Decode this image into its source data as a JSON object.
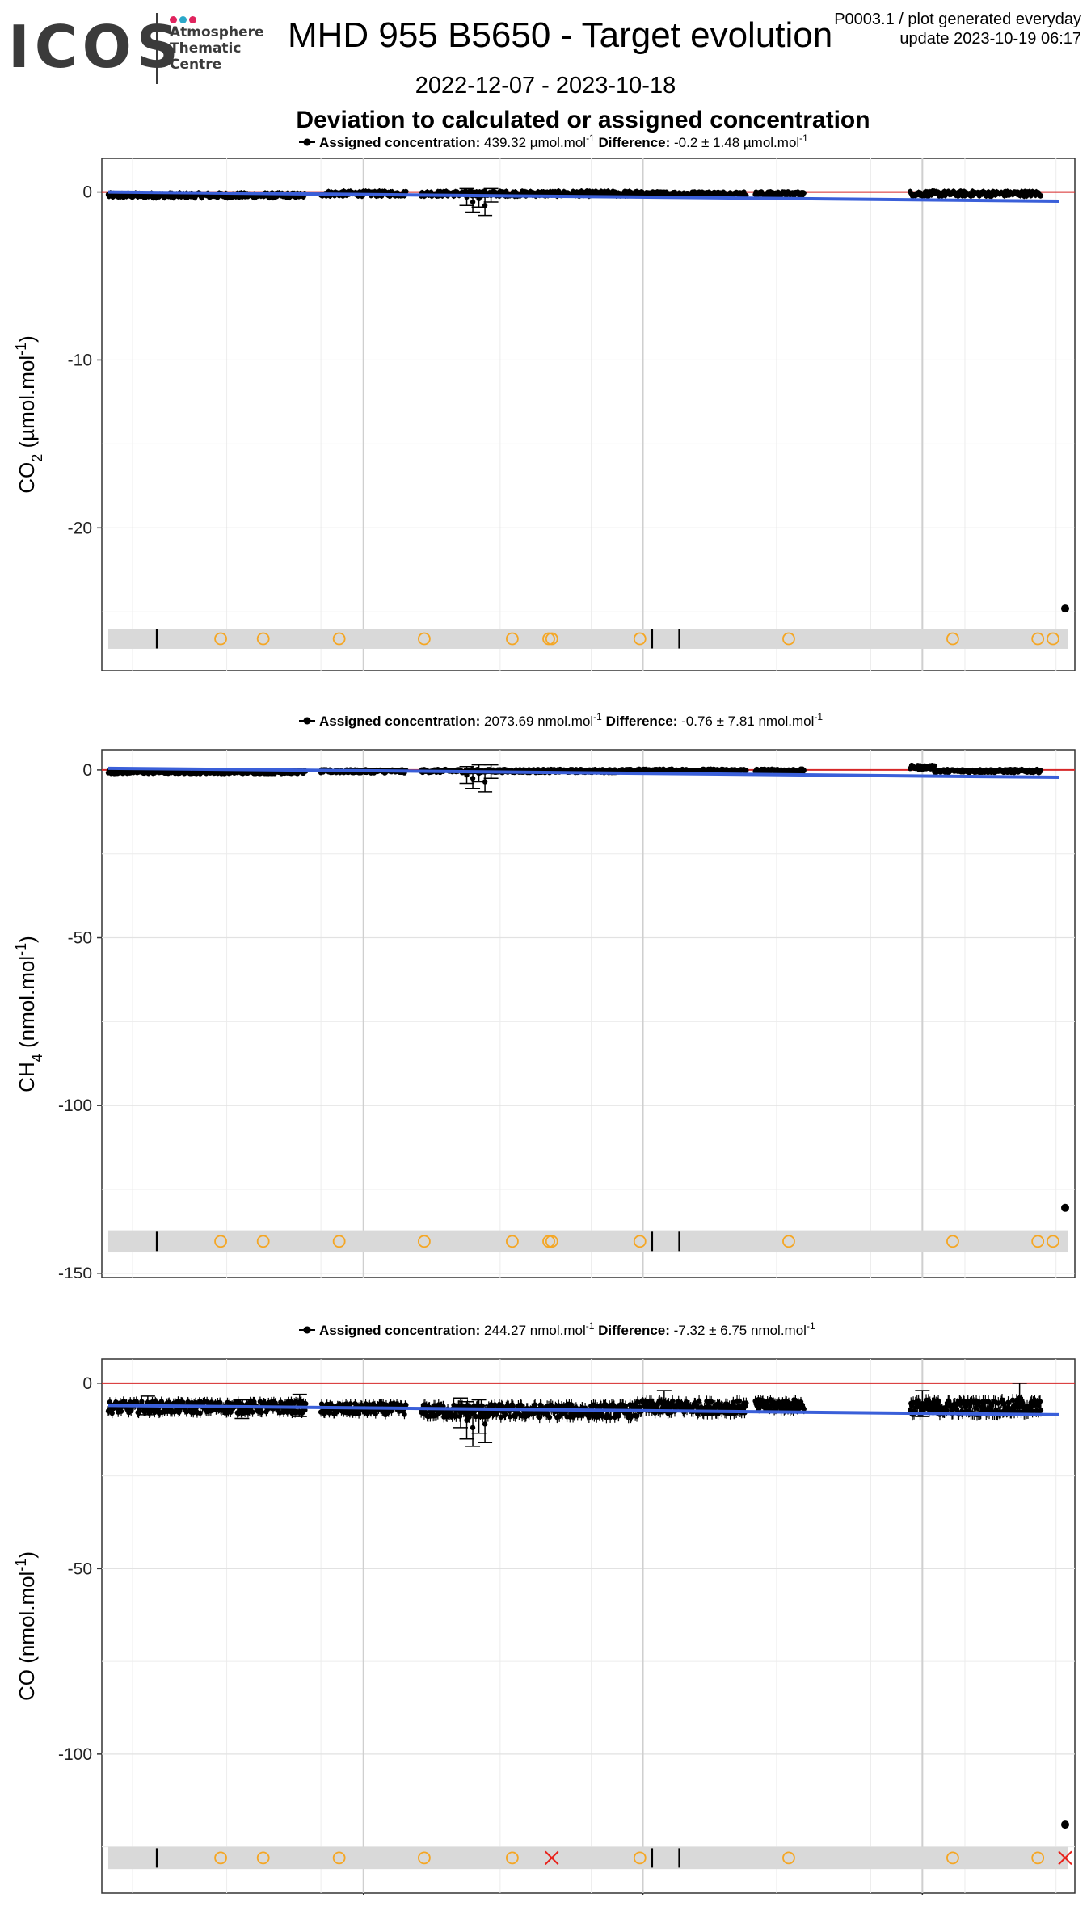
{
  "header": {
    "logo": {
      "word": "ICOS",
      "lines": [
        "Atmosphere",
        "Thematic",
        "Centre"
      ],
      "dot_colors": [
        "#e0245e",
        "#2aa8c9",
        "#e0245e"
      ]
    },
    "title": "MHD 955 B5650 - Target evolution",
    "date_range": "2022-12-07 - 2023-10-18",
    "subtitle": "Deviation to calculated or assigned concentration",
    "info_line1": "P0003.1 / plot generated everyday",
    "info_line2": "update  2023-10-19 06:17"
  },
  "colors": {
    "data": "#000000",
    "trend": "#3a5fd9",
    "zero_line": "#d62728",
    "flag_circle": "#f5a623",
    "flag_cross": "#e8221c",
    "flag_band": "#d9d9d9"
  },
  "chart_data": [
    {
      "type": "scatter",
      "legend": {
        "label_bold": "Assigned concentration:",
        "assigned": "439.32 µmol.mol",
        "sup1": "-1",
        "diff_bold": "Difference:",
        "difference": "-0.2 ± 1.48 µmol.mol",
        "sup2": "-1"
      },
      "ylabel_main": "CO",
      "ylabel_sub": "2",
      "ylabel_unit": " (µmol.mol",
      "ylabel_sup": "-1",
      "ylabel_end": ")",
      "xlim": [
        "2022-12-07",
        "2023-10-18"
      ],
      "ylim": [
        -28.5,
        2.0
      ],
      "yticks": [
        0,
        -10,
        -20
      ],
      "xticks": [
        "2023-03",
        "2023-06",
        "2023-09"
      ],
      "xminor": [
        "2022-12-15",
        "2023-01-15",
        "2023-02-15",
        "2023-04-15",
        "2023-05-15",
        "2023-07-15",
        "2023-08-15",
        "2023-09-15",
        "2023-10-15"
      ],
      "band": {
        "y": -26.6,
        "half_height": 0.6
      },
      "segments": [
        {
          "x1": "2022-12-07",
          "x2": "2023-02-10",
          "y": -0.2,
          "spread": 0.15
        },
        {
          "x1": "2023-02-15",
          "x2": "2023-03-15",
          "y": -0.1,
          "spread": 0.15
        },
        {
          "x1": "2023-03-20",
          "x2": "2023-05-30",
          "y": -0.1,
          "spread": 0.15
        },
        {
          "x1": "2023-05-30",
          "x2": "2023-07-05",
          "y": -0.1,
          "spread": 0.12
        },
        {
          "x1": "2023-07-08",
          "x2": "2023-07-24",
          "y": -0.1,
          "spread": 0.12
        },
        {
          "x1": "2023-08-28",
          "x2": "2023-10-10",
          "y": -0.1,
          "spread": 0.15
        }
      ],
      "errorbars": [
        {
          "x": "2023-04-04",
          "y": -0.3,
          "err": 0.5
        },
        {
          "x": "2023-04-06",
          "y": -0.6,
          "err": 0.6
        },
        {
          "x": "2023-04-08",
          "y": -0.4,
          "err": 0.5
        },
        {
          "x": "2023-04-10",
          "y": -0.8,
          "err": 0.6
        },
        {
          "x": "2023-04-12",
          "y": -0.2,
          "err": 0.4
        }
      ],
      "outliers": [
        {
          "x": "2023-10-18",
          "y": -24.8
        }
      ],
      "trend": {
        "x": [
          "2022-12-07",
          "2023-10-16"
        ],
        "y": [
          0.0,
          -0.55
        ]
      },
      "flags": [
        {
          "x": "2022-12-23",
          "kind": "tick"
        },
        {
          "x": "2023-01-13",
          "kind": "circle"
        },
        {
          "x": "2023-01-27",
          "kind": "circle"
        },
        {
          "x": "2023-02-21",
          "kind": "circle"
        },
        {
          "x": "2023-03-21",
          "kind": "circle"
        },
        {
          "x": "2023-04-19",
          "kind": "circle"
        },
        {
          "x": "2023-05-01",
          "kind": "circle"
        },
        {
          "x": "2023-05-02",
          "kind": "circle"
        },
        {
          "x": "2023-05-31",
          "kind": "circle"
        },
        {
          "x": "2023-06-04",
          "kind": "tick"
        },
        {
          "x": "2023-06-13",
          "kind": "tick"
        },
        {
          "x": "2023-07-19",
          "kind": "circle"
        },
        {
          "x": "2023-09-11",
          "kind": "circle"
        },
        {
          "x": "2023-10-09",
          "kind": "circle"
        },
        {
          "x": "2023-10-14",
          "kind": "circle"
        }
      ]
    },
    {
      "type": "scatter",
      "legend": {
        "label_bold": "Assigned concentration:",
        "assigned": "2073.69 nmol.mol",
        "sup1": "-1",
        "diff_bold": "Difference:",
        "difference": "-0.76 ± 7.81 nmol.mol",
        "sup2": "-1"
      },
      "ylabel_main": "CH",
      "ylabel_sub": "4",
      "ylabel_unit": " (nmol.mol",
      "ylabel_sup": "-1",
      "ylabel_end": ")",
      "xlim": [
        "2022-12-07",
        "2023-10-18"
      ],
      "ylim": [
        -151.5,
        6.0
      ],
      "yticks": [
        0,
        -50,
        -100,
        -150
      ],
      "xticks": [
        "2023-03",
        "2023-06",
        "2023-09"
      ],
      "xminor": [
        "2022-12-15",
        "2023-01-15",
        "2023-02-15",
        "2023-04-15",
        "2023-05-15",
        "2023-07-15",
        "2023-08-15",
        "2023-09-15",
        "2023-10-15"
      ],
      "band": {
        "y": -140.5,
        "half_height": 3.3
      },
      "segments": [
        {
          "x1": "2022-12-07",
          "x2": "2023-02-10",
          "y": -0.6,
          "spread": 0.5
        },
        {
          "x1": "2023-02-15",
          "x2": "2023-03-15",
          "y": -0.4,
          "spread": 0.5
        },
        {
          "x1": "2023-03-20",
          "x2": "2023-05-30",
          "y": -0.3,
          "spread": 0.5
        },
        {
          "x1": "2023-05-30",
          "x2": "2023-07-05",
          "y": -0.2,
          "spread": 0.5
        },
        {
          "x1": "2023-07-08",
          "x2": "2023-07-24",
          "y": -0.2,
          "spread": 0.5
        },
        {
          "x1": "2023-08-28",
          "x2": "2023-09-05",
          "y": 0.8,
          "spread": 0.6
        },
        {
          "x1": "2023-09-05",
          "x2": "2023-10-10",
          "y": -0.3,
          "spread": 0.5
        }
      ],
      "errorbars": [
        {
          "x": "2023-04-04",
          "y": -1.5,
          "err": 2.5
        },
        {
          "x": "2023-04-06",
          "y": -2.5,
          "err": 3.0
        },
        {
          "x": "2023-04-08",
          "y": -1.0,
          "err": 2.5
        },
        {
          "x": "2023-04-10",
          "y": -3.5,
          "err": 3.0
        },
        {
          "x": "2023-04-12",
          "y": -0.5,
          "err": 2.0
        }
      ],
      "outliers": [
        {
          "x": "2023-10-18",
          "y": -130.5
        }
      ],
      "trend": {
        "x": [
          "2022-12-07",
          "2023-10-16"
        ],
        "y": [
          0.5,
          -2.2
        ]
      },
      "flags": [
        {
          "x": "2022-12-23",
          "kind": "tick"
        },
        {
          "x": "2023-01-13",
          "kind": "circle"
        },
        {
          "x": "2023-01-27",
          "kind": "circle"
        },
        {
          "x": "2023-02-21",
          "kind": "circle"
        },
        {
          "x": "2023-03-21",
          "kind": "circle"
        },
        {
          "x": "2023-04-19",
          "kind": "circle"
        },
        {
          "x": "2023-05-01",
          "kind": "circle"
        },
        {
          "x": "2023-05-02",
          "kind": "circle"
        },
        {
          "x": "2023-05-31",
          "kind": "circle"
        },
        {
          "x": "2023-06-04",
          "kind": "tick"
        },
        {
          "x": "2023-06-13",
          "kind": "tick"
        },
        {
          "x": "2023-07-19",
          "kind": "circle"
        },
        {
          "x": "2023-09-11",
          "kind": "circle"
        },
        {
          "x": "2023-10-09",
          "kind": "circle"
        },
        {
          "x": "2023-10-14",
          "kind": "circle"
        }
      ]
    },
    {
      "type": "scatter",
      "legend": {
        "label_bold": "Assigned concentration:",
        "assigned": "244.27 nmol.mol",
        "sup1": "-1",
        "diff_bold": "Difference:",
        "difference": "-7.32 ± 6.75 nmol.mol",
        "sup2": "-1"
      },
      "ylabel_main": "CO",
      "ylabel_sub": "",
      "ylabel_unit": " (nmol.mol",
      "ylabel_sup": "-1",
      "ylabel_end": ")",
      "xlim": [
        "2022-12-07",
        "2023-10-18"
      ],
      "ylim": [
        -137.5,
        6.5
      ],
      "yticks": [
        0,
        -50,
        -100
      ],
      "xticks": [
        "2023-03",
        "2023-06",
        "2023-09"
      ],
      "xminor": [
        "2022-12-15",
        "2023-01-15",
        "2023-02-15",
        "2023-04-15",
        "2023-05-15",
        "2023-07-15",
        "2023-08-15",
        "2023-09-15",
        "2023-10-15"
      ],
      "band": {
        "y": -128.0,
        "half_height": 3.0
      },
      "segments": [
        {
          "x1": "2022-12-07",
          "x2": "2023-02-10",
          "y": -6.5,
          "spread": 1.6
        },
        {
          "x1": "2023-02-15",
          "x2": "2023-03-15",
          "y": -7.0,
          "spread": 1.5
        },
        {
          "x1": "2023-03-20",
          "x2": "2023-05-30",
          "y": -7.5,
          "spread": 1.8
        },
        {
          "x1": "2023-05-30",
          "x2": "2023-07-05",
          "y": -6.5,
          "spread": 1.8
        },
        {
          "x1": "2023-07-08",
          "x2": "2023-07-24",
          "y": -6.0,
          "spread": 1.6
        },
        {
          "x1": "2023-08-28",
          "x2": "2023-10-10",
          "y": -6.5,
          "spread": 2.0
        }
      ],
      "errorbars": [
        {
          "x": "2022-12-20",
          "y": -6.0,
          "err": 2.5
        },
        {
          "x": "2023-01-20",
          "y": -7.0,
          "err": 2.5
        },
        {
          "x": "2023-02-08",
          "y": -6.0,
          "err": 3.0
        },
        {
          "x": "2023-04-02",
          "y": -8.0,
          "err": 4.0
        },
        {
          "x": "2023-04-04",
          "y": -10.0,
          "err": 5.0
        },
        {
          "x": "2023-04-06",
          "y": -12.0,
          "err": 5.0
        },
        {
          "x": "2023-04-08",
          "y": -9.0,
          "err": 4.5
        },
        {
          "x": "2023-04-10",
          "y": -11.0,
          "err": 5.0
        },
        {
          "x": "2023-06-08",
          "y": -5.0,
          "err": 3.0
        },
        {
          "x": "2023-09-01",
          "y": -5.5,
          "err": 3.5
        },
        {
          "x": "2023-10-03",
          "y": -4.0,
          "err": 4.0
        }
      ],
      "outliers": [
        {
          "x": "2023-10-18",
          "y": -119.0
        }
      ],
      "trend": {
        "x": [
          "2022-12-07",
          "2023-10-16"
        ],
        "y": [
          -6.0,
          -8.5
        ]
      },
      "flags": [
        {
          "x": "2022-12-23",
          "kind": "tick"
        },
        {
          "x": "2023-01-13",
          "kind": "circle"
        },
        {
          "x": "2023-01-27",
          "kind": "circle"
        },
        {
          "x": "2023-02-21",
          "kind": "circle"
        },
        {
          "x": "2023-03-21",
          "kind": "circle"
        },
        {
          "x": "2023-04-19",
          "kind": "circle"
        },
        {
          "x": "2023-05-02",
          "kind": "cross"
        },
        {
          "x": "2023-05-31",
          "kind": "circle"
        },
        {
          "x": "2023-06-04",
          "kind": "tick"
        },
        {
          "x": "2023-06-13",
          "kind": "tick"
        },
        {
          "x": "2023-07-19",
          "kind": "circle"
        },
        {
          "x": "2023-09-11",
          "kind": "circle"
        },
        {
          "x": "2023-10-09",
          "kind": "circle"
        },
        {
          "x": "2023-10-18",
          "kind": "cross"
        }
      ]
    }
  ]
}
